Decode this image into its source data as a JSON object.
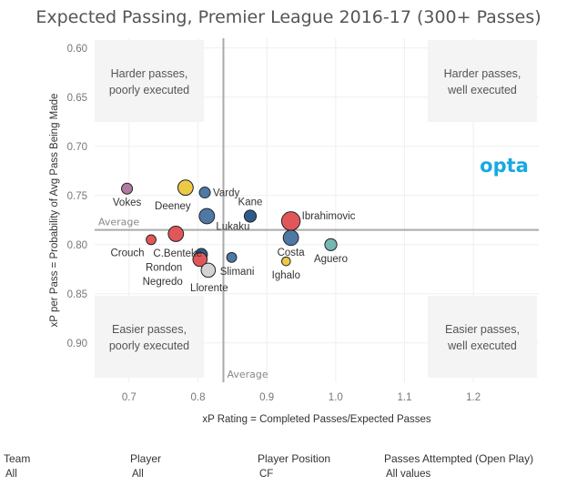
{
  "chart_data": {
    "type": "scatter",
    "title": "Expected Passing, Premier League 2016-17 (300+ Passes)",
    "xlabel": "xP Rating = Completed Passes/Expected Passes",
    "ylabel": "xP per Pass = Probability of Avg Pass Being Made",
    "xlim": [
      0.65,
      1.295
    ],
    "ylim": [
      0.94,
      0.59
    ],
    "x_ticks": [
      "0.7",
      "0.8",
      "0.9",
      "1.0",
      "1.1",
      "1.2"
    ],
    "y_ticks": [
      "0.60",
      "0.65",
      "0.70",
      "0.75",
      "0.80",
      "0.85",
      "0.90"
    ],
    "grid": true,
    "average_x": 0.837,
    "average_y": 0.785,
    "average_label": "Average",
    "quadrants": {
      "top_left": [
        "Harder passes,",
        "poorly executed"
      ],
      "top_right": [
        "Harder passes,",
        "well executed"
      ],
      "bottom_left": [
        "Easier passes,",
        "poorly executed"
      ],
      "bottom_right": [
        "Easier passes,",
        "well executed"
      ]
    },
    "brand": "opta",
    "points": [
      {
        "name": "Vokes",
        "x": 0.697,
        "y": 0.743,
        "color": "#b07aa1",
        "size": 1.0
      },
      {
        "name": "Deeney",
        "x": 0.782,
        "y": 0.742,
        "color": "#edc948",
        "size": 1.4
      },
      {
        "name": "Vardy",
        "x": 0.81,
        "y": 0.747,
        "color": "#4e79a7",
        "size": 1.0
      },
      {
        "name": "Lukaku",
        "x": 0.813,
        "y": 0.771,
        "color": "#4e79a7",
        "size": 1.4
      },
      {
        "name": "Kane",
        "x": 0.876,
        "y": 0.771,
        "color": "#2f5b8c",
        "size": 1.1
      },
      {
        "name": "Ibrahimovic",
        "x": 0.935,
        "y": 0.776,
        "color": "#e15759",
        "size": 1.7
      },
      {
        "name": "Costa",
        "x": 0.935,
        "y": 0.793,
        "color": "#4e79a7",
        "size": 1.4
      },
      {
        "name": "Aguero",
        "x": 0.993,
        "y": 0.8,
        "color": "#76b7b2",
        "size": 1.1
      },
      {
        "name": "Crouch",
        "x": 0.732,
        "y": 0.795,
        "color": "#e15759",
        "size": 0.9
      },
      {
        "name": "C.Benteke",
        "x": 0.768,
        "y": 0.789,
        "color": "#e15759",
        "size": 1.4
      },
      {
        "name": "Rondon",
        "x": 0.805,
        "y": 0.81,
        "color": "#2f5b8c",
        "size": 1.1
      },
      {
        "name": "Negredo",
        "x": 0.803,
        "y": 0.815,
        "color": "#e15759",
        "size": 1.3
      },
      {
        "name": "Llorente",
        "x": 0.815,
        "y": 0.826,
        "color": "#d3d3d3",
        "size": 1.3
      },
      {
        "name": "Slimani",
        "x": 0.849,
        "y": 0.813,
        "color": "#4e79a7",
        "size": 0.9
      },
      {
        "name": "Ighalo",
        "x": 0.928,
        "y": 0.817,
        "color": "#edc948",
        "size": 0.8
      }
    ]
  },
  "filters": [
    {
      "label": "Team",
      "value": "All"
    },
    {
      "label": "Player",
      "value": "All"
    },
    {
      "label": "Player Position",
      "value": "CF"
    },
    {
      "label": "Passes Attempted (Open Play)",
      "value": "All values"
    }
  ]
}
